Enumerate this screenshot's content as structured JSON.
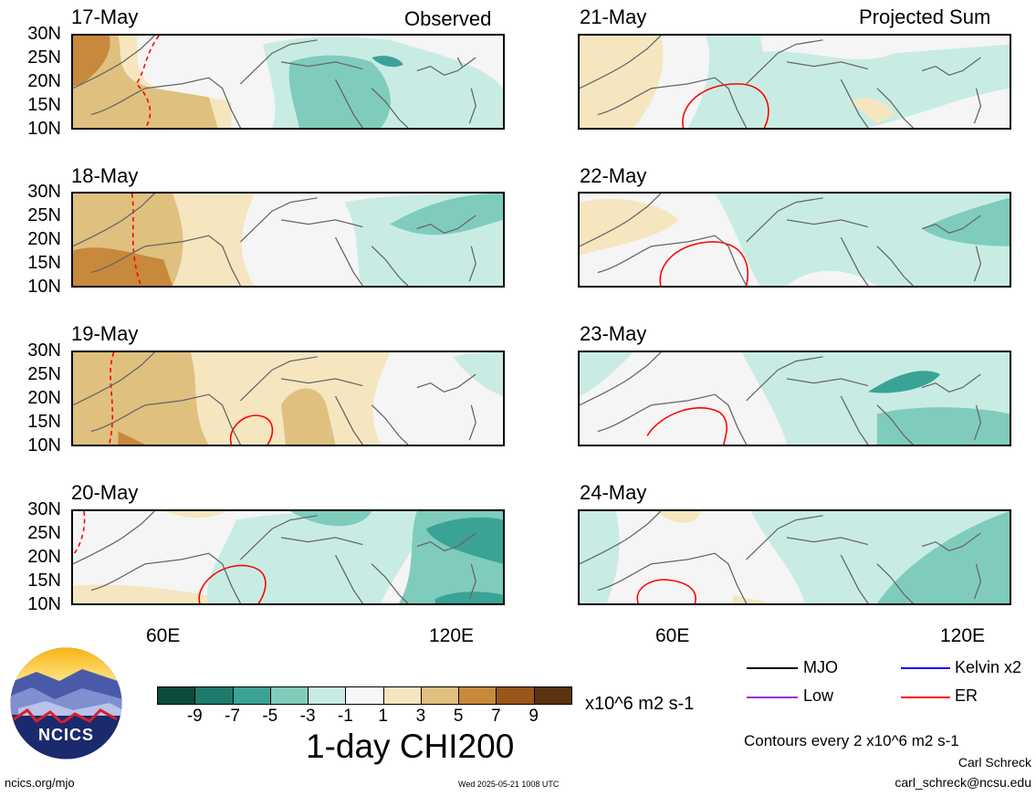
{
  "panel_tags": {
    "left": "Observed",
    "right": "Projected Sum"
  },
  "panels_left": [
    {
      "date": "17-May"
    },
    {
      "date": "18-May"
    },
    {
      "date": "19-May"
    },
    {
      "date": "20-May"
    }
  ],
  "panels_right": [
    {
      "date": "21-May"
    },
    {
      "date": "22-May"
    },
    {
      "date": "23-May"
    },
    {
      "date": "24-May"
    }
  ],
  "lat_labels": [
    "30N",
    "25N",
    "20N",
    "15N",
    "10N"
  ],
  "lon_labels": [
    "60E",
    "120E"
  ],
  "colorbar": {
    "ticks": [
      "-9",
      "-7",
      "-5",
      "-3",
      "-1",
      "1",
      "3",
      "5",
      "7",
      "9"
    ],
    "colors": [
      "#0b4a3c",
      "#1e7a6a",
      "#3ba395",
      "#7fccbd",
      "#c8ece3",
      "#f7f7f7",
      "#f5e6c0",
      "#dfc07f",
      "#c8893c",
      "#98561a",
      "#5a3210"
    ],
    "units": "x10^6 m2 s-1",
    "title": "1-day CHI200"
  },
  "legend": [
    {
      "label": "MJO",
      "color": "#000000"
    },
    {
      "label": "Kelvin x2",
      "color": "#0000ff"
    },
    {
      "label": "Low",
      "color": "#9933cc"
    },
    {
      "label": "ER",
      "color": "#ff0000"
    }
  ],
  "contour_note": "Contours every 2 x10^6 m2 s-1",
  "author": "Carl Schreck",
  "email": "carl_schreck@ncsu.edu",
  "site": "ncics.org/mjo",
  "timestamp": "Wed 2025-05-21 1008 UTC",
  "logo_text": "NCICS"
}
